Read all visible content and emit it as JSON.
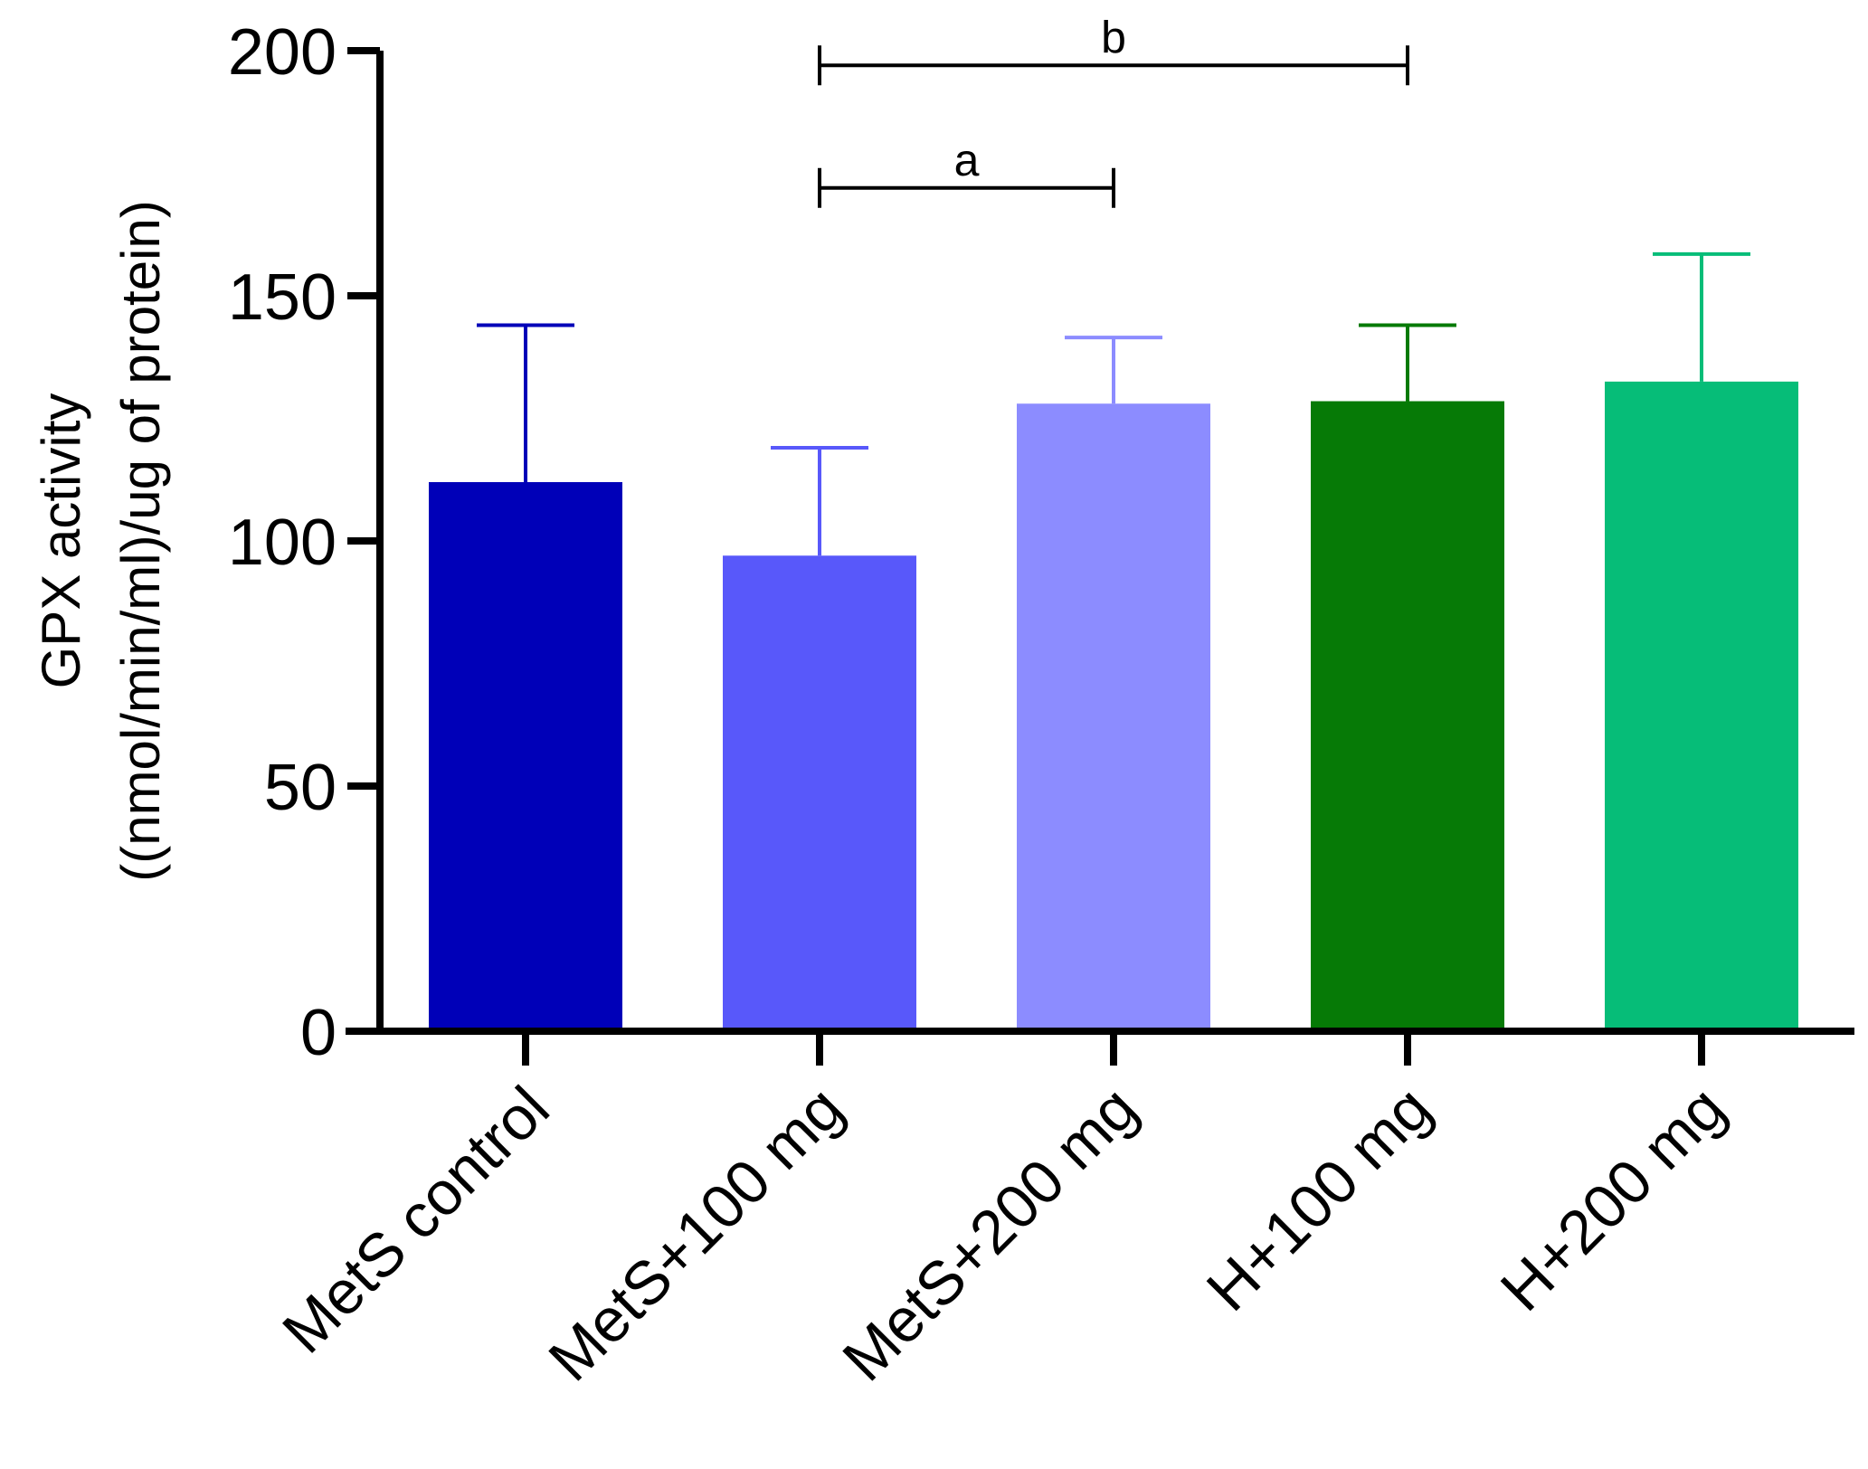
{
  "chart_data": {
    "type": "bar",
    "title": "",
    "xlabel": "",
    "ylabel_lines": [
      "GPX activity",
      "((nmol/min/ml)/ug of protein)"
    ],
    "ylim": [
      0,
      200
    ],
    "yticks": [
      0,
      50,
      100,
      150,
      200
    ],
    "categories": [
      "MetS control",
      "MetS+100 mg",
      "MetS+200 mg",
      "H+100 mg",
      "H+200 mg"
    ],
    "values": [
      112,
      97,
      128,
      128.5,
      132.5
    ],
    "error_upper": [
      144,
      119,
      141.5,
      144,
      158.5
    ],
    "colors": [
      "#0000b8",
      "#5858fa",
      "#8c8cff",
      "#067a06",
      "#06bd78"
    ],
    "significance": [
      {
        "label": "a",
        "from": 1,
        "to": 2,
        "y": 172
      },
      {
        "label": "b",
        "from": 1,
        "to": 3,
        "y": 197
      }
    ]
  }
}
